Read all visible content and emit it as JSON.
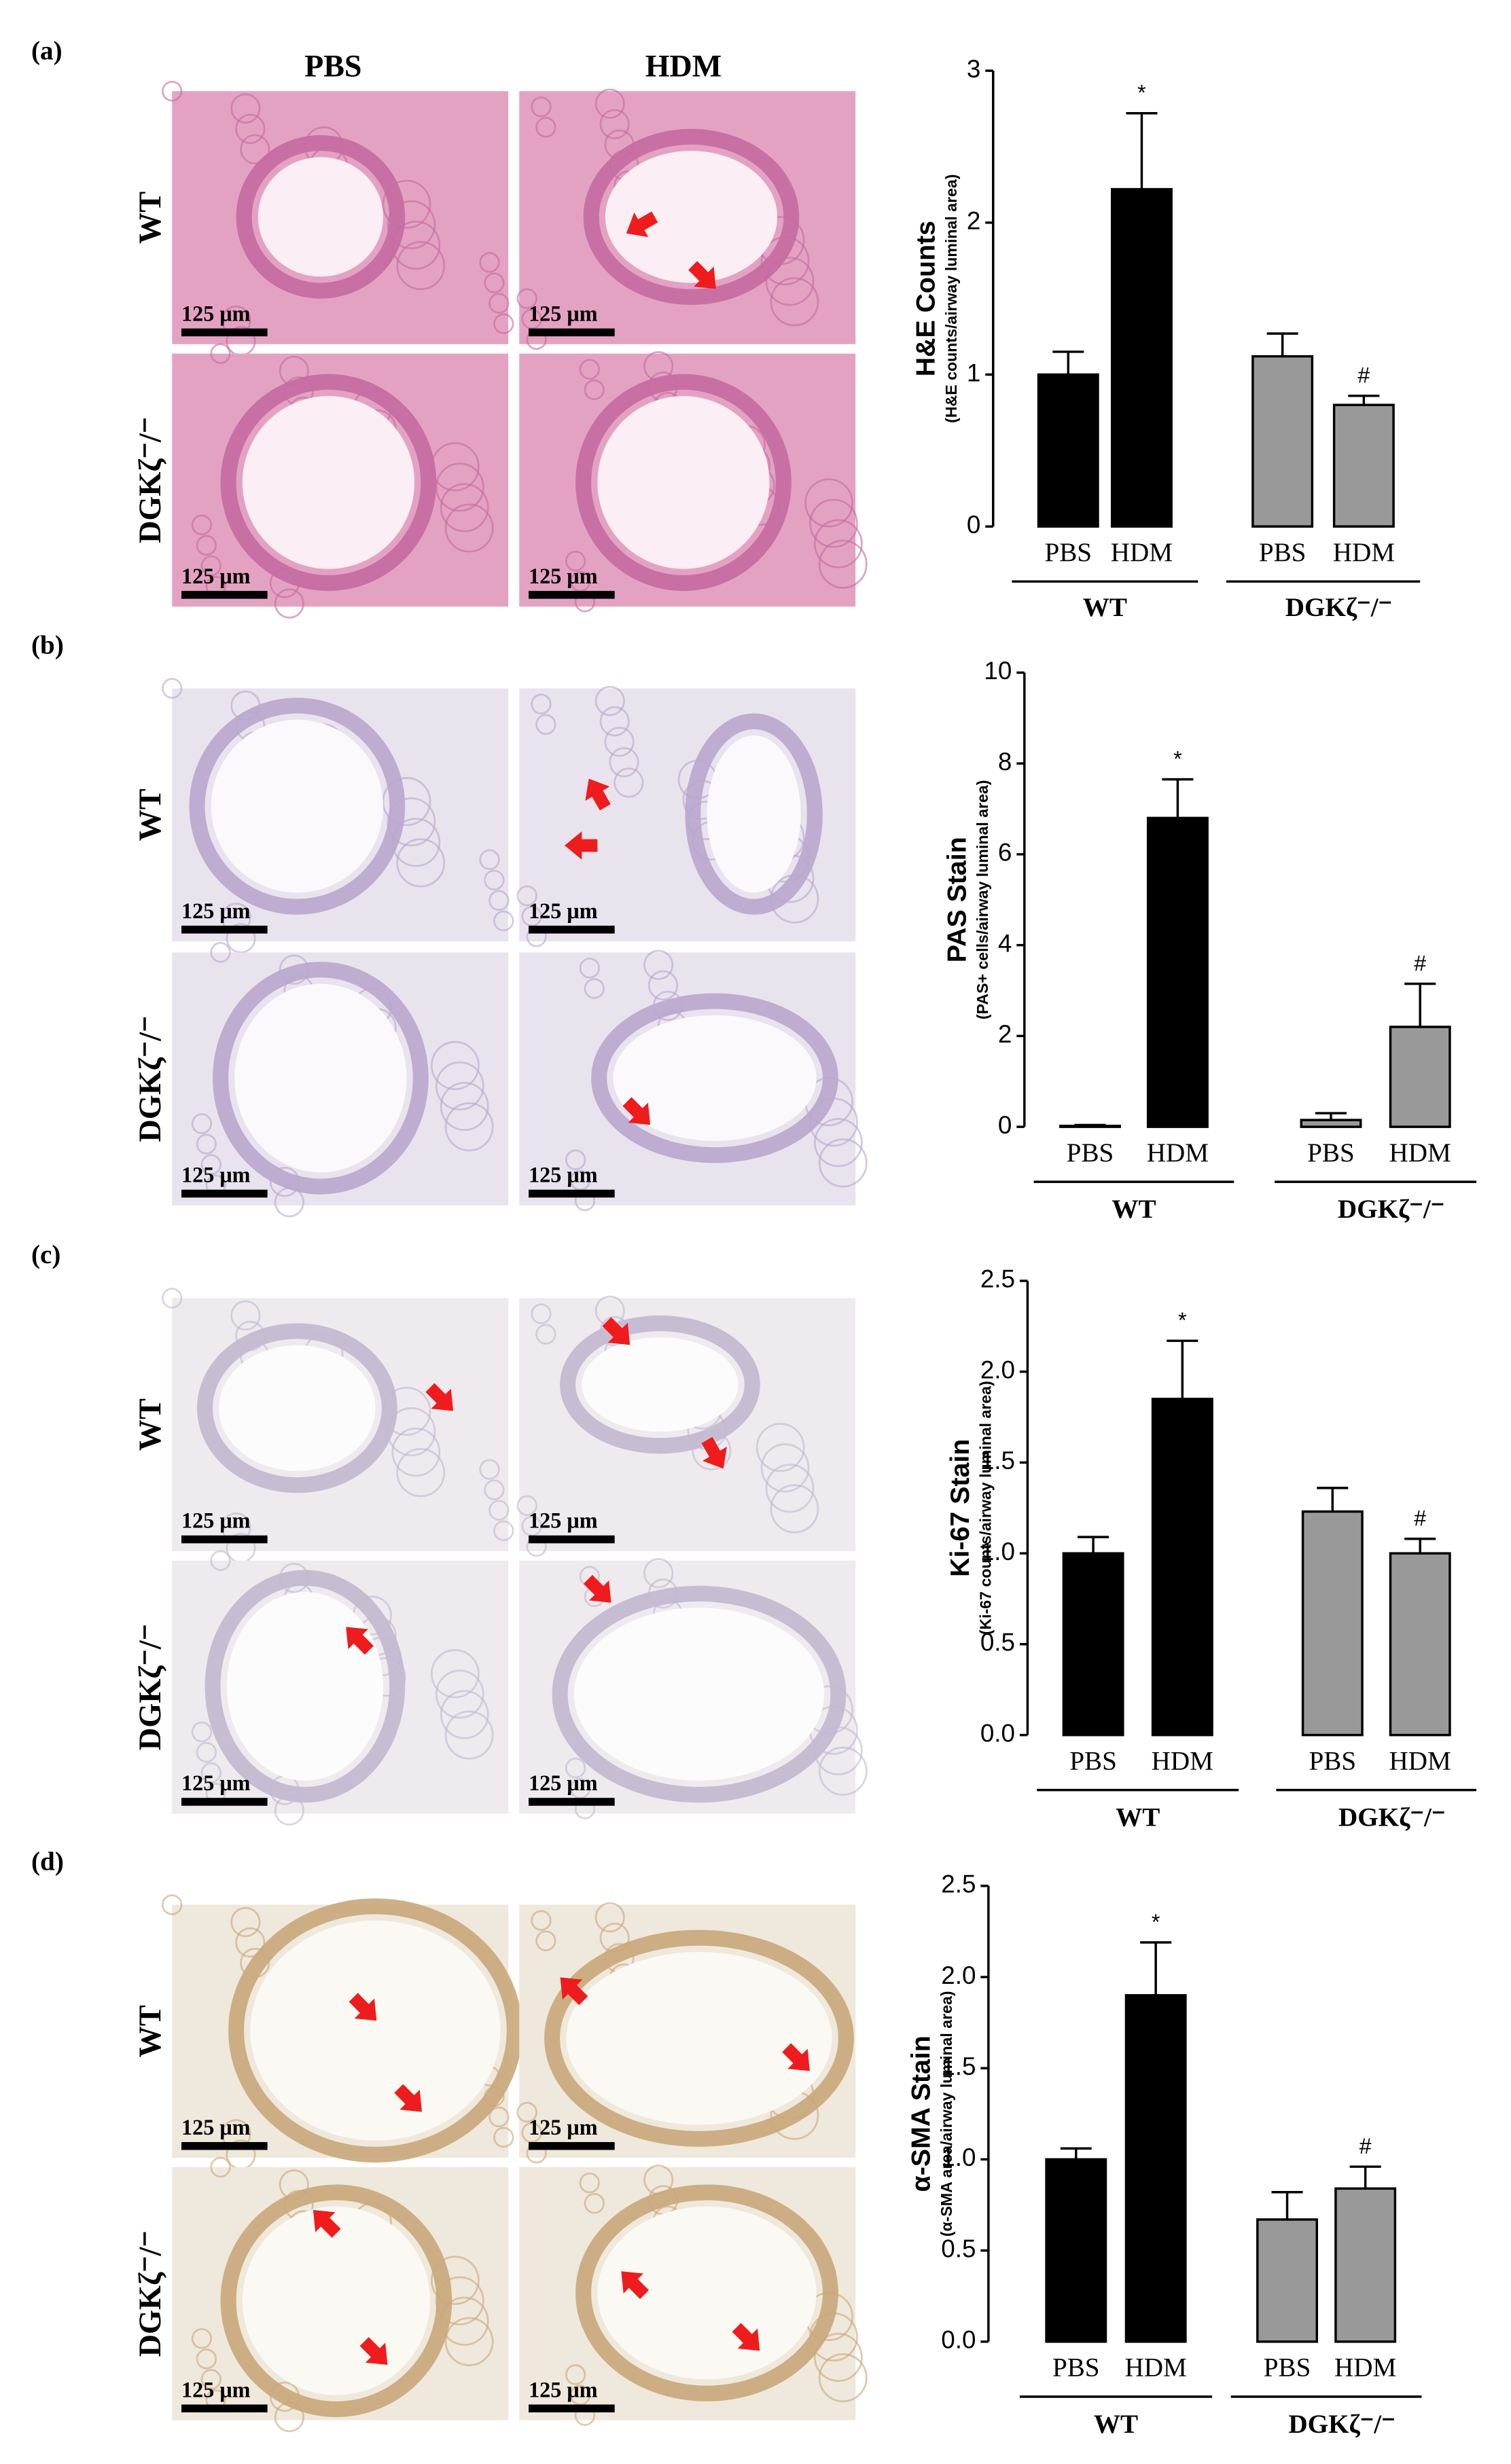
{
  "figure": {
    "panel_labels": [
      "(a)",
      "(b)",
      "(c)",
      "(d)"
    ],
    "column_headers": [
      "PBS",
      "HDM"
    ],
    "row_labels": [
      "WT",
      "DGKζ⁻/⁻"
    ],
    "scale_bar": "125 μm"
  },
  "chart_data": [
    {
      "type": "bar",
      "ylabel": "H&E Counts",
      "ylabel_sub": "(H&E counts/airway luminal area)",
      "categories": [
        "PBS",
        "HDM",
        "PBS",
        "HDM"
      ],
      "groups": [
        "WT",
        "DGKζ⁻/⁻"
      ],
      "values": [
        1.0,
        2.22,
        1.12,
        0.8
      ],
      "errors": [
        0.15,
        0.5,
        0.15,
        0.06
      ],
      "colors": [
        "#000000",
        "#000000",
        "#999999",
        "#999999"
      ],
      "annotations": [
        null,
        "*",
        null,
        "#"
      ],
      "ylim": [
        0,
        3
      ],
      "yticks": [
        0,
        1,
        2,
        3
      ]
    },
    {
      "type": "bar",
      "ylabel": "PAS Stain",
      "ylabel_sub": "(PAS+ cells/airway luminal area)",
      "categories": [
        "PBS",
        "HDM",
        "PBS",
        "HDM"
      ],
      "groups": [
        "WT",
        "DGKζ⁻/⁻"
      ],
      "values": [
        0.02,
        6.8,
        0.15,
        2.2
      ],
      "errors": [
        0.02,
        0.85,
        0.15,
        0.95
      ],
      "colors": [
        "#000000",
        "#000000",
        "#999999",
        "#999999"
      ],
      "annotations": [
        null,
        "*",
        null,
        "#"
      ],
      "ylim": [
        0,
        10
      ],
      "yticks": [
        0,
        2,
        4,
        6,
        8,
        10
      ]
    },
    {
      "type": "bar",
      "ylabel": "Ki-67 Stain",
      "ylabel_sub": "(Ki-67 counts/airway luminal area)",
      "categories": [
        "PBS",
        "HDM",
        "PBS",
        "HDM"
      ],
      "groups": [
        "WT",
        "DGKζ⁻/⁻"
      ],
      "values": [
        1.0,
        1.85,
        1.23,
        1.0
      ],
      "errors": [
        0.09,
        0.32,
        0.13,
        0.08
      ],
      "colors": [
        "#000000",
        "#000000",
        "#999999",
        "#999999"
      ],
      "annotations": [
        null,
        "*",
        null,
        "#"
      ],
      "ylim": [
        0,
        2.5
      ],
      "yticks": [
        {
          "value": 0,
          "label": "0.0"
        },
        0.5,
        {
          "value": 1,
          "label": "1.0"
        },
        1.5,
        {
          "value": 2,
          "label": "2.0"
        },
        2.5
      ]
    },
    {
      "type": "bar",
      "ylabel": "α-SMA Stain",
      "ylabel_sub": "(α-SMA area/airway luminal area)",
      "categories": [
        "PBS",
        "HDM",
        "PBS",
        "HDM"
      ],
      "groups": [
        "WT",
        "DGKζ⁻/⁻"
      ],
      "values": [
        1.0,
        1.9,
        0.67,
        0.84
      ],
      "errors": [
        0.06,
        0.29,
        0.15,
        0.12
      ],
      "colors": [
        "#000000",
        "#000000",
        "#999999",
        "#999999"
      ],
      "annotations": [
        null,
        "*",
        null,
        "#"
      ],
      "ylim": [
        0,
        2.5
      ],
      "yticks": [
        {
          "value": 0,
          "label": "0.0"
        },
        0.5,
        {
          "value": 1,
          "label": "1.0"
        },
        1.5,
        {
          "value": 2,
          "label": "2.0"
        },
        2.5
      ]
    }
  ]
}
